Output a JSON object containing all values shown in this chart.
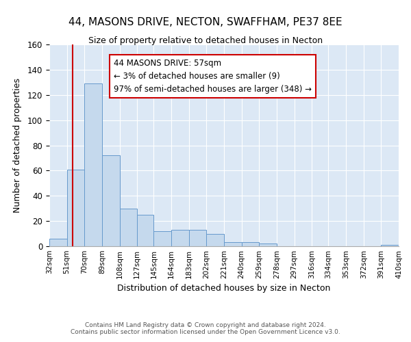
{
  "title": "44, MASONS DRIVE, NECTON, SWAFFHAM, PE37 8EE",
  "subtitle": "Size of property relative to detached houses in Necton",
  "xlabel": "Distribution of detached houses by size in Necton",
  "ylabel": "Number of detached properties",
  "bar_color": "#c5d9ed",
  "bar_edge_color": "#6699cc",
  "background_color": "#dce8f5",
  "bins": [
    32,
    51,
    70,
    89,
    108,
    127,
    145,
    164,
    183,
    202,
    221,
    240,
    259,
    278,
    297,
    316,
    334,
    353,
    372,
    391,
    410
  ],
  "values": [
    6,
    61,
    129,
    72,
    30,
    25,
    12,
    13,
    13,
    10,
    3,
    3,
    2,
    0,
    0,
    0,
    0,
    0,
    0,
    1,
    0
  ],
  "red_line_x": 57,
  "annotation_text": "44 MASONS DRIVE: 57sqm\n← 3% of detached houses are smaller (9)\n97% of semi-detached houses are larger (348) →",
  "annotation_box_color": "#ffffff",
  "annotation_border_color": "#cc0000",
  "ylim": [
    0,
    160
  ],
  "yticks": [
    0,
    20,
    40,
    60,
    80,
    100,
    120,
    140,
    160
  ],
  "footer1": "Contains HM Land Registry data © Crown copyright and database right 2024.",
  "footer2": "Contains public sector information licensed under the Open Government Licence v3.0."
}
